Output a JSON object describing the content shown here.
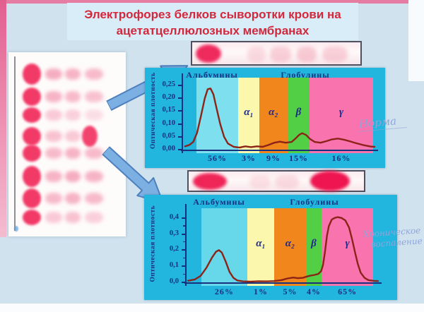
{
  "slide": {
    "title_line1": "Электрофорез белков сыворотки крови на",
    "title_line2": "ацетатцеллюлозных мембранах"
  },
  "annotations": {
    "normal": "Норма",
    "chronic_line1": "Хроническое",
    "chronic_line2": "воспаление"
  },
  "colors": {
    "title_text": "#d3273b",
    "panel_cyan": "#22b5de",
    "axis_navy": "#17317f",
    "curve": "#8c2318",
    "arrow_fill": "#7db0e2",
    "arrow_stroke": "#4d80bf"
  },
  "chart_data": [
    {
      "type": "line",
      "condition": "норма",
      "title_left": "Альбумины",
      "title_right": "Глобулины",
      "ylabel": "Оптическая плотность",
      "y_axis_top": 0.28,
      "y_ticks": [
        {
          "label": "0,25",
          "value": 0.25
        },
        {
          "label": "0,20",
          "value": 0.2
        },
        {
          "label": "0,15",
          "value": 0.15
        },
        {
          "label": "0,10",
          "value": 0.1
        },
        {
          "label": "0,05",
          "value": 0.05
        },
        {
          "label": "0,00",
          "value": 0.0
        }
      ],
      "y_minor": [],
      "zones": [
        {
          "name": "albumin",
          "label": "",
          "color": "#7edfee",
          "fraction": "56%",
          "x0": 0.077,
          "x1": 0.293
        },
        {
          "name": "alpha1",
          "label": "α₁",
          "color": "#fbf7ac",
          "fraction": "3%",
          "x0": 0.293,
          "x1": 0.403
        },
        {
          "name": "alpha2",
          "label": "α₂",
          "color": "#f0861c",
          "fraction": "9%",
          "x0": 0.403,
          "x1": 0.549
        },
        {
          "name": "beta",
          "label": "β",
          "color": "#53cf45",
          "fraction": "15%",
          "x0": 0.549,
          "x1": 0.663
        },
        {
          "name": "gamma",
          "label": "γ",
          "color": "#f973ae",
          "fraction": "16%",
          "x0": 0.663,
          "x1": 0.993
        }
      ],
      "curve": [
        [
          0.018,
          0.013
        ],
        [
          0.04,
          0.018
        ],
        [
          0.06,
          0.03
        ],
        [
          0.08,
          0.065
        ],
        [
          0.1,
          0.13
        ],
        [
          0.12,
          0.2
        ],
        [
          0.135,
          0.235
        ],
        [
          0.15,
          0.238
        ],
        [
          0.165,
          0.215
        ],
        [
          0.18,
          0.165
        ],
        [
          0.2,
          0.1
        ],
        [
          0.22,
          0.05
        ],
        [
          0.24,
          0.024
        ],
        [
          0.27,
          0.011
        ],
        [
          0.3,
          0.008
        ],
        [
          0.33,
          0.013
        ],
        [
          0.36,
          0.01
        ],
        [
          0.39,
          0.013
        ],
        [
          0.42,
          0.011
        ],
        [
          0.45,
          0.018
        ],
        [
          0.48,
          0.027
        ],
        [
          0.51,
          0.031
        ],
        [
          0.54,
          0.027
        ],
        [
          0.57,
          0.03
        ],
        [
          0.59,
          0.043
        ],
        [
          0.61,
          0.058
        ],
        [
          0.625,
          0.064
        ],
        [
          0.645,
          0.057
        ],
        [
          0.665,
          0.042
        ],
        [
          0.69,
          0.03
        ],
        [
          0.72,
          0.027
        ],
        [
          0.75,
          0.033
        ],
        [
          0.78,
          0.04
        ],
        [
          0.81,
          0.043
        ],
        [
          0.84,
          0.039
        ],
        [
          0.87,
          0.033
        ],
        [
          0.9,
          0.026
        ],
        [
          0.94,
          0.018
        ],
        [
          0.98,
          0.012
        ],
        [
          1.0,
          0.011
        ]
      ]
    },
    {
      "type": "line",
      "condition": "хроническое воспаление",
      "title_left": "Альбумины",
      "title_right": "Глобулины",
      "ylabel": "Оптическая плотность",
      "y_axis_top": 0.46,
      "y_ticks": [
        {
          "label": "0,4",
          "value": 0.4
        },
        {
          "label": "0,3",
          "value": 0.3
        },
        {
          "label": "0,2",
          "value": 0.2
        },
        {
          "label": "0,1",
          "value": 0.1
        },
        {
          "label": "0,0",
          "value": 0.0
        }
      ],
      "y_minor": [
        0.35,
        0.25,
        0.15,
        0.05
      ],
      "zones": [
        {
          "name": "albumin",
          "label": "",
          "color": "#66d8e9",
          "fraction": "26%",
          "x0": 0.084,
          "x1": 0.322
        },
        {
          "name": "alpha1",
          "label": "α₁",
          "color": "#fbf7ac",
          "fraction": "1%",
          "x0": 0.322,
          "x1": 0.462
        },
        {
          "name": "alpha2",
          "label": "α₂",
          "color": "#f0861c",
          "fraction": "5%",
          "x0": 0.462,
          "x1": 0.626
        },
        {
          "name": "beta",
          "label": "β",
          "color": "#53cf45",
          "fraction": "4%",
          "x0": 0.626,
          "x1": 0.707
        },
        {
          "name": "gamma",
          "label": "γ",
          "color": "#f973ae",
          "fraction": "65%",
          "x0": 0.707,
          "x1": 0.975
        }
      ],
      "curve": [
        [
          0.015,
          0.01
        ],
        [
          0.05,
          0.018
        ],
        [
          0.08,
          0.04
        ],
        [
          0.11,
          0.09
        ],
        [
          0.14,
          0.155
        ],
        [
          0.16,
          0.19
        ],
        [
          0.175,
          0.2
        ],
        [
          0.19,
          0.185
        ],
        [
          0.21,
          0.13
        ],
        [
          0.23,
          0.065
        ],
        [
          0.25,
          0.028
        ],
        [
          0.27,
          0.012
        ],
        [
          0.3,
          0.006
        ],
        [
          0.34,
          0.005
        ],
        [
          0.38,
          0.007
        ],
        [
          0.42,
          0.006
        ],
        [
          0.46,
          0.008
        ],
        [
          0.5,
          0.014
        ],
        [
          0.53,
          0.024
        ],
        [
          0.56,
          0.03
        ],
        [
          0.585,
          0.026
        ],
        [
          0.61,
          0.028
        ],
        [
          0.63,
          0.036
        ],
        [
          0.65,
          0.042
        ],
        [
          0.67,
          0.046
        ],
        [
          0.69,
          0.052
        ],
        [
          0.705,
          0.07
        ],
        [
          0.715,
          0.11
        ],
        [
          0.725,
          0.19
        ],
        [
          0.735,
          0.29
        ],
        [
          0.745,
          0.35
        ],
        [
          0.76,
          0.39
        ],
        [
          0.775,
          0.4
        ],
        [
          0.79,
          0.405
        ],
        [
          0.81,
          0.4
        ],
        [
          0.83,
          0.385
        ],
        [
          0.85,
          0.34
        ],
        [
          0.865,
          0.27
        ],
        [
          0.88,
          0.19
        ],
        [
          0.895,
          0.115
        ],
        [
          0.91,
          0.06
        ],
        [
          0.93,
          0.028
        ],
        [
          0.95,
          0.014
        ],
        [
          0.98,
          0.009
        ],
        [
          1.0,
          0.008
        ]
      ]
    }
  ]
}
